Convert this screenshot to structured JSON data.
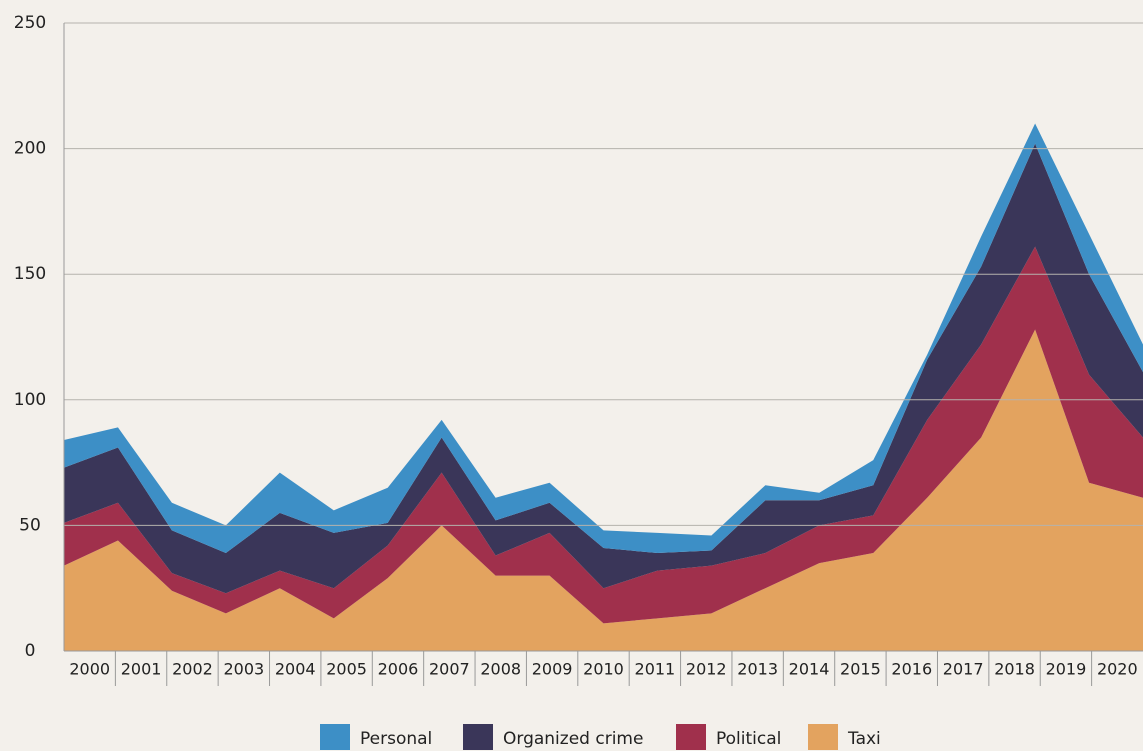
{
  "chart_data": {
    "type": "stacked_area",
    "categories": [
      "2000",
      "2001",
      "2002",
      "2003",
      "2004",
      "2005",
      "2006",
      "2007",
      "2008",
      "2009",
      "2010",
      "2011",
      "2012",
      "2013",
      "2014",
      "2015",
      "2016",
      "2017",
      "2018",
      "2019",
      "2020"
    ],
    "series": [
      {
        "name": "Personal",
        "color": "#3d8fc6",
        "values": [
          11,
          8,
          11,
          11,
          16,
          9,
          14,
          7,
          9,
          8,
          7,
          8,
          6,
          6,
          3,
          10,
          2,
          12,
          8,
          16,
          11
        ]
      },
      {
        "name": "Organized crime",
        "color": "#3a3659",
        "values": [
          22,
          22,
          17,
          16,
          23,
          22,
          9,
          14,
          14,
          12,
          16,
          7,
          6,
          21,
          10,
          12,
          24,
          31,
          41,
          40,
          26
        ]
      },
      {
        "name": "Political",
        "color": "#a0304c",
        "values": [
          17,
          15,
          7,
          8,
          7,
          12,
          13,
          21,
          8,
          17,
          14,
          19,
          19,
          14,
          15,
          15,
          31,
          37,
          33,
          43,
          24
        ]
      },
      {
        "name": "Taxi",
        "color": "#e3a35f",
        "values": [
          34,
          44,
          24,
          15,
          25,
          13,
          29,
          50,
          30,
          30,
          11,
          13,
          15,
          25,
          35,
          39,
          61,
          85,
          128,
          67,
          61
        ]
      }
    ],
    "ylim": [
      0,
      250
    ],
    "yticks": [
      0,
      50,
      100,
      150,
      200,
      250
    ],
    "grid": true
  }
}
